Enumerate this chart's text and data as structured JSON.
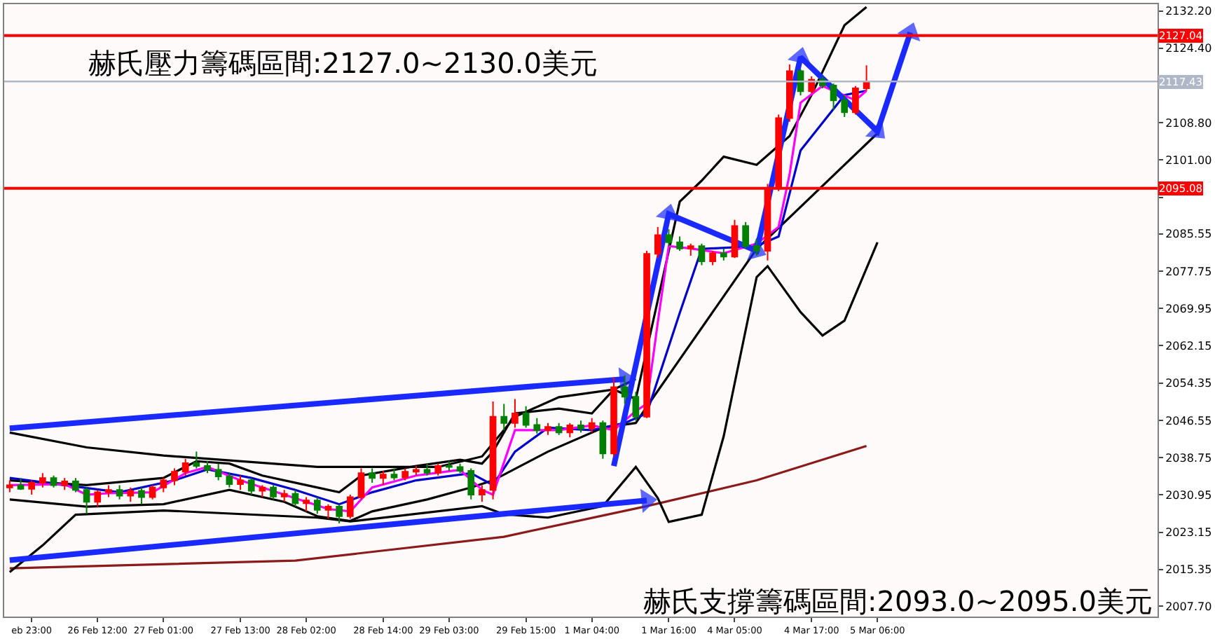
{
  "chart_data": {
    "type": "candlestick",
    "annotations": [
      "赫氏壓力籌碼區間:2127.0~2130.0美元",
      "赫氏支撐籌碼區間:2093.0~2095.0美元"
    ],
    "categories": [
      null,
      null,
      "eb 23:00",
      null,
      null,
      null,
      null,
      null,
      "26 Feb 12:00",
      null,
      null,
      null,
      null,
      null,
      "27 Feb 01:00",
      null,
      null,
      null,
      null,
      null,
      null,
      "27 Feb 13:00",
      null,
      null,
      null,
      null,
      null,
      "28 Feb 02:00",
      null,
      null,
      null,
      null,
      null,
      null,
      "28 Feb 14:00",
      null,
      null,
      null,
      null,
      null,
      "29 Feb 03:00",
      null,
      null,
      null,
      null,
      null,
      null,
      "29 Feb 15:00",
      null,
      null,
      null,
      null,
      null,
      "1 Mar 04:00",
      null,
      null,
      null,
      null,
      null,
      null,
      "1 Mar 16:00",
      null,
      null,
      null,
      null,
      null,
      "4 Mar 05:00",
      null,
      null,
      null,
      null,
      null,
      null,
      "4 Mar 17:00",
      null,
      null,
      null,
      null,
      null,
      "5 Mar 06:00",
      null,
      null,
      null,
      null,
      null,
      null,
      null,
      null,
      null,
      null,
      null,
      null,
      null,
      null,
      null,
      null,
      null,
      null,
      null,
      null,
      null,
      null,
      null,
      null,
      null
    ],
    "ohlc": [
      [
        2032.5,
        2034,
        2031.5,
        2033
      ],
      [
        2033,
        2034.5,
        2032,
        2032.2
      ],
      [
        2032.2,
        2034,
        2031,
        2033.5
      ],
      [
        2033.5,
        2035.5,
        2032.5,
        2034.5
      ],
      [
        2034.5,
        2035,
        2032.5,
        2033
      ],
      [
        2033,
        2034.5,
        2032,
        2033.8
      ],
      [
        2033.8,
        2034.5,
        2031.5,
        2032
      ],
      [
        2032,
        2032.5,
        2027,
        2029.5
      ],
      [
        2029.5,
        2032,
        2028.5,
        2031.5
      ],
      [
        2031.5,
        2033,
        2030.5,
        2032
      ],
      [
        2032,
        2033,
        2030,
        2030.8
      ],
      [
        2030.8,
        2032.5,
        2029.5,
        2031.8
      ],
      [
        2031.8,
        2032.5,
        2029,
        2030.5
      ],
      [
        2030.5,
        2033,
        2030,
        2032.5
      ],
      [
        2032.5,
        2034.5,
        2031.5,
        2034
      ],
      [
        2034,
        2036.5,
        2033,
        2035.8
      ],
      [
        2035.8,
        2038.5,
        2035,
        2037.6
      ],
      [
        2037.6,
        2040,
        2036.5,
        2037
      ],
      [
        2037,
        2038,
        2035.5,
        2036.2
      ],
      [
        2036.2,
        2037.5,
        2034,
        2034.8
      ],
      [
        2034.8,
        2035.5,
        2032.5,
        2033.2
      ],
      [
        2033.2,
        2035,
        2032,
        2034
      ],
      [
        2034,
        2034.5,
        2031,
        2031.8
      ],
      [
        2031.8,
        2033,
        2030.5,
        2032.5
      ],
      [
        2032.5,
        2033,
        2030,
        2030.6
      ],
      [
        2030.6,
        2032,
        2029.5,
        2031.2
      ],
      [
        2031.2,
        2032,
        2028.5,
        2029.2
      ],
      [
        2029.2,
        2030.5,
        2027.5,
        2029.8
      ],
      [
        2029.8,
        2030.5,
        2027,
        2027.8
      ],
      [
        2027.8,
        2029,
        2026,
        2028.5
      ],
      [
        2028.5,
        2029,
        2025,
        2026.5
      ],
      [
        2026.5,
        2031,
        2026,
        2030.5
      ],
      [
        2030.5,
        2036.5,
        2030,
        2035.5
      ],
      [
        2035.5,
        2036.5,
        2033.5,
        2034.5
      ],
      [
        2034.5,
        2036,
        2033,
        2035.2
      ],
      [
        2035.2,
        2036.5,
        2034,
        2034.6
      ],
      [
        2034.6,
        2036.5,
        2034,
        2035.8
      ],
      [
        2035.8,
        2037,
        2035,
        2036.2
      ],
      [
        2036.2,
        2037.5,
        2035,
        2035.6
      ],
      [
        2035.6,
        2037.5,
        2035,
        2037
      ],
      [
        2037,
        2038,
        2036,
        2036.8
      ],
      [
        2036.8,
        2037.5,
        2035.5,
        2036
      ],
      [
        2036,
        2036.5,
        2030,
        2031
      ],
      [
        2031,
        2033,
        2029.5,
        2032
      ],
      [
        2032,
        2050.5,
        2030,
        2047.3
      ],
      [
        2047.3,
        2050,
        2044.5,
        2046
      ],
      [
        2046,
        2051,
        2045,
        2048
      ],
      [
        2048,
        2049.5,
        2045,
        2045.6
      ],
      [
        2045.6,
        2047,
        2043.8,
        2044.5
      ],
      [
        2044.5,
        2046,
        2043.5,
        2045.2
      ],
      [
        2045.2,
        2046,
        2043.5,
        2044
      ],
      [
        2044,
        2046,
        2043,
        2045.5
      ],
      [
        2045.5,
        2046.5,
        2044,
        2044.8
      ],
      [
        2044.8,
        2047,
        2044,
        2046
      ],
      [
        2046,
        2046.5,
        2038.5,
        2039.6
      ],
      [
        2039.6,
        2055.5,
        2039,
        2053.5
      ],
      [
        2053.5,
        2056,
        2050,
        2051.5
      ],
      [
        2051.5,
        2052.5,
        2046.5,
        2047.3
      ],
      [
        2047.3,
        2082,
        2047,
        2081.4
      ],
      [
        2081.4,
        2087,
        2080.5,
        2085.3
      ],
      [
        2085.3,
        2086.5,
        2083,
        2083.8
      ],
      [
        2083.8,
        2085,
        2082,
        2082.5
      ],
      [
        2082.5,
        2083.5,
        2081,
        2083
      ],
      [
        2083,
        2083.5,
        2079,
        2079.8
      ],
      [
        2079.8,
        2082,
        2079,
        2081.5
      ],
      [
        2081.5,
        2082.5,
        2080,
        2080.8
      ],
      [
        2080.8,
        2088.5,
        2080.5,
        2087.2
      ],
      [
        2087.2,
        2088,
        2082.5,
        2083
      ],
      [
        2083,
        2084.5,
        2081,
        2082
      ],
      [
        2082,
        2096,
        2080,
        2095
      ],
      [
        2095,
        2110.5,
        2094.5,
        2109.8
      ],
      [
        2109.8,
        2121,
        2109,
        2119.6
      ],
      [
        2119.6,
        2120,
        2114.5,
        2115.4
      ],
      [
        2115.4,
        2118.5,
        2115,
        2117.8
      ],
      [
        2117.8,
        2118.5,
        2116,
        2116.6
      ],
      [
        2116.6,
        2117,
        2111.5,
        2113.5
      ],
      [
        2113.5,
        2114.5,
        2110,
        2111
      ],
      [
        2111,
        2116.5,
        2110.5,
        2116
      ],
      [
        2116,
        2120.8,
        2115.5,
        2117.43
      ],
      null,
      null,
      null,
      null,
      null,
      null,
      null,
      null,
      null,
      null,
      null,
      null,
      null,
      null,
      null,
      null,
      null,
      null,
      null,
      null,
      null,
      null,
      null,
      null,
      null,
      null
    ],
    "colors": [
      "#ff0000",
      "#008000",
      "#ff0000",
      "#ff0000",
      "#008000",
      "#ff0000",
      "#008000",
      "#008000",
      "#ff0000",
      "#ff0000",
      "#008000",
      "#ff0000",
      "#008000",
      "#ff0000",
      "#ff0000",
      "#ff0000",
      "#ff0000",
      "#008000",
      "#008000",
      "#008000",
      "#008000",
      "#ff0000",
      "#008000",
      "#ff0000",
      "#008000",
      "#ff0000",
      "#008000",
      "#ff0000",
      "#008000",
      "#ff0000",
      "#008000",
      "#ff0000",
      "#ff0000",
      "#008000",
      "#ff0000",
      "#008000",
      "#ff0000",
      "#ff0000",
      "#008000",
      "#ff0000",
      "#008000",
      "#008000",
      "#008000",
      "#ff0000",
      "#ff0000",
      "#008000",
      "#ff0000",
      "#008000",
      "#008000",
      "#ff0000",
      "#008000",
      "#ff0000",
      "#008000",
      "#ff0000",
      "#008000",
      "#ff0000",
      "#008000",
      "#008000",
      "#ff0000",
      "#ff0000",
      "#008000",
      "#008000",
      "#ff0000",
      "#008000",
      "#ff0000",
      "#008000",
      "#ff0000",
      "#008000",
      "#008000",
      "#ff0000",
      "#ff0000",
      "#ff0000",
      "#008000",
      "#ff0000",
      "#008000",
      "#008000",
      "#008000",
      "#ff0000",
      "#ff0000",
      null,
      null,
      null,
      null,
      null,
      null,
      null,
      null,
      null,
      null,
      null,
      null,
      null,
      null,
      null,
      null,
      null,
      null,
      null,
      null,
      null,
      null,
      null,
      null,
      null,
      null
    ],
    "series": [
      {
        "type": "line",
        "color": "#8b1a1a",
        "values": [
          2015.6,
          null,
          null,
          null,
          null,
          null,
          null,
          null,
          null,
          null,
          null,
          null,
          null,
          null,
          null,
          null,
          null,
          null,
          null,
          null,
          null,
          null,
          null,
          null,
          null,
          null,
          2017.2,
          null,
          null,
          null,
          null,
          null,
          null,
          null,
          null,
          null,
          null,
          null,
          null,
          null,
          null,
          null,
          null,
          null,
          null,
          2022.2,
          null,
          null,
          null,
          null,
          null,
          null,
          null,
          null,
          null,
          null,
          null,
          null,
          2028.6,
          null,
          null,
          null,
          null,
          null,
          null,
          null,
          null,
          null,
          2034,
          null,
          null,
          null,
          null,
          null,
          null,
          null,
          null,
          null,
          2041.2,
          null,
          null,
          null,
          null,
          null,
          null,
          null,
          null,
          null,
          null,
          null,
          null,
          null,
          null,
          null,
          null,
          null,
          null,
          null,
          null,
          null,
          null,
          null,
          null,
          null,
          null
        ]
      },
      {
        "type": "line",
        "color": "#000000",
        "values": [
          2044,
          null,
          null,
          null,
          null,
          null,
          null,
          2040.9,
          null,
          null,
          null,
          null,
          null,
          null,
          2039.2,
          null,
          null,
          null,
          null,
          null,
          null,
          null,
          null,
          null,
          null,
          null,
          null,
          null,
          2036.8,
          null,
          null,
          null,
          null,
          null,
          null,
          null,
          null,
          null,
          null,
          2036.8,
          null,
          null,
          null,
          2039,
          null,
          null,
          2047.3,
          null,
          null,
          null,
          2051.4,
          null,
          null,
          null,
          null,
          2053,
          null,
          2051,
          null,
          null,
          null,
          2092.3,
          null,
          2096.7,
          null,
          2101.7,
          null,
          null,
          2100,
          null,
          null,
          2106,
          null,
          2114.6,
          null,
          null,
          2129.2,
          null,
          2133,
          null,
          null,
          null,
          null,
          null,
          null,
          null,
          null,
          null,
          null,
          null,
          null,
          null,
          null,
          null,
          null,
          null,
          null,
          null,
          null,
          null,
          null,
          null,
          null,
          null,
          null
        ]
      },
      {
        "type": "line",
        "color": "#000000",
        "values": [
          2014.8,
          null,
          null,
          2020.4,
          null,
          null,
          2026.8,
          null,
          null,
          null,
          null,
          null,
          null,
          null,
          2027.7,
          null,
          null,
          null,
          null,
          null,
          null,
          null,
          null,
          null,
          null,
          null,
          null,
          null,
          2026.2,
          null,
          null,
          2025.4,
          null,
          null,
          null,
          null,
          null,
          null,
          null,
          null,
          null,
          null,
          null,
          2028.6,
          null,
          2026.9,
          null,
          null,
          null,
          2026.2,
          null,
          null,
          null,
          null,
          2028.6,
          null,
          null,
          2036.8,
          null,
          2030.3,
          2025.3,
          null,
          null,
          2026.8,
          null,
          2043.2,
          null,
          null,
          2076.5,
          2078.8,
          null,
          null,
          2069.2,
          null,
          2064.3,
          null,
          2067.4,
          null,
          null,
          2083.8,
          null,
          null,
          null,
          null,
          null,
          null,
          null,
          null,
          null,
          null,
          null,
          null,
          null,
          null,
          null,
          null,
          null,
          null,
          null,
          null,
          null,
          null,
          null,
          null,
          null
        ]
      },
      {
        "type": "line",
        "color": "#000000",
        "values": [
          2034,
          null,
          null,
          null,
          null,
          null,
          null,
          2033,
          null,
          null,
          null,
          null,
          null,
          null,
          2034.5,
          null,
          null,
          2038,
          null,
          null,
          2037.5,
          null,
          null,
          2035,
          null,
          null,
          null,
          2033,
          null,
          null,
          2031.5,
          null,
          2035,
          null,
          null,
          null,
          null,
          2037,
          null,
          null,
          null,
          2038.3,
          null,
          2037.5,
          2040,
          null,
          2048,
          null,
          null,
          null,
          2049,
          null,
          null,
          2048,
          null,
          2053,
          null,
          2055.2,
          null,
          null,
          null,
          null,
          null,
          null,
          null,
          null,
          null,
          null,
          null,
          null,
          null,
          null,
          null,
          null,
          null,
          null,
          null,
          null,
          null,
          null,
          null,
          null,
          null,
          null,
          null,
          null,
          null,
          null,
          null,
          null,
          null,
          null,
          null,
          null,
          null,
          null,
          null,
          null,
          null,
          null,
          null,
          null,
          null,
          null,
          null
        ]
      },
      {
        "type": "line",
        "color": "#000000",
        "values": [
          2030,
          null,
          null,
          null,
          null,
          null,
          null,
          2028.5,
          null,
          null,
          null,
          null,
          null,
          null,
          2029,
          null,
          null,
          null,
          null,
          null,
          2032,
          null,
          null,
          null,
          null,
          2029.5,
          null,
          null,
          2026.5,
          null,
          null,
          2025.5,
          null,
          2027.5,
          null,
          null,
          null,
          null,
          2030,
          null,
          null,
          null,
          2032.5,
          null,
          2034,
          null,
          null,
          null,
          null,
          2040,
          null,
          null,
          null,
          null,
          2045,
          null,
          null,
          2046,
          2049.4,
          null,
          null,
          null,
          null,
          null,
          null,
          null,
          null,
          null,
          2082.4,
          null,
          null,
          null,
          null,
          null,
          null,
          null,
          null,
          null,
          null,
          2106.6,
          null,
          null,
          null,
          null,
          null,
          null,
          null,
          null,
          null,
          null,
          null,
          null,
          null,
          null,
          null,
          null,
          null,
          null,
          null,
          null,
          null,
          null,
          null,
          null,
          null
        ]
      },
      {
        "type": "line",
        "color": "#0000cd",
        "values": [
          2034.5,
          null,
          null,
          null,
          null,
          2033,
          null,
          null,
          null,
          null,
          2031.5,
          null,
          null,
          null,
          null,
          2034,
          null,
          null,
          2036.3,
          null,
          null,
          null,
          2034.5,
          null,
          null,
          null,
          2032,
          null,
          null,
          null,
          2029,
          null,
          null,
          2031.5,
          null,
          null,
          null,
          2034,
          null,
          null,
          null,
          null,
          2035.5,
          null,
          2033,
          null,
          2040,
          null,
          null,
          2045,
          null,
          null,
          null,
          2044.5,
          null,
          null,
          2046,
          null,
          2048,
          2055,
          null,
          2069,
          null,
          2082.4,
          null,
          null,
          null,
          null,
          2083,
          null,
          2085,
          null,
          2103,
          null,
          null,
          null,
          2114.6,
          null,
          2115.5,
          null,
          null,
          null,
          null,
          null,
          null,
          null,
          null,
          null,
          null,
          null,
          null,
          null,
          null,
          null,
          null,
          null,
          null,
          null,
          null,
          null,
          null,
          null,
          null,
          null,
          null
        ]
      },
      {
        "type": "line",
        "color": "#ff00ff",
        "values": [
          2033,
          null,
          null,
          null,
          null,
          2033.2,
          null,
          2031,
          null,
          2031.3,
          null,
          null,
          null,
          2031.5,
          null,
          null,
          2035.5,
          null,
          2036.8,
          null,
          null,
          2034,
          null,
          null,
          null,
          2031,
          null,
          null,
          null,
          2028,
          null,
          2027.5,
          null,
          2032.5,
          null,
          null,
          null,
          2035,
          null,
          null,
          null,
          2036.2,
          null,
          2032,
          2031,
          null,
          2044.5,
          null,
          null,
          null,
          2044.5,
          null,
          null,
          2045.5,
          null,
          2044.5,
          null,
          2048.5,
          2050,
          2067,
          2083,
          null,
          2082.5,
          null,
          null,
          2081.5,
          null,
          null,
          2083.5,
          null,
          2087,
          2098,
          2113,
          null,
          2116.5,
          null,
          null,
          2113.5,
          2115.5,
          null,
          null,
          null,
          null,
          null,
          null,
          null,
          null,
          null,
          null,
          null,
          null,
          null,
          null,
          null,
          null,
          null,
          null,
          null,
          null,
          null,
          null,
          null,
          null,
          null,
          null
        ]
      },
      {
        "type": "line",
        "color": "#1a2aff",
        "marker": "triangle",
        "values": [
          2044.9,
          null,
          null,
          null,
          null,
          null,
          null,
          null,
          null,
          null,
          null,
          null,
          null,
          null,
          null,
          null,
          null,
          null,
          null,
          null,
          null,
          null,
          null,
          null,
          null,
          null,
          null,
          null,
          null,
          null,
          null,
          null,
          null,
          null,
          null,
          null,
          null,
          null,
          null,
          null,
          null,
          null,
          null,
          null,
          null,
          null,
          null,
          null,
          null,
          null,
          null,
          null,
          null,
          null,
          null,
          null,
          2055.2,
          null,
          null,
          null,
          null,
          null,
          null,
          null,
          null,
          null,
          null,
          null,
          null,
          null,
          null,
          null,
          null,
          null,
          null,
          null,
          null,
          null,
          null,
          null,
          null,
          null,
          null,
          null,
          null,
          null,
          null,
          null,
          null,
          null,
          null,
          null,
          null,
          null,
          null,
          null,
          null,
          null,
          null,
          null,
          null,
          null,
          null,
          null,
          null
        ]
      },
      {
        "type": "line",
        "color": "#1a2aff",
        "marker": "triangle",
        "values": [
          2017.3,
          null,
          null,
          null,
          null,
          null,
          null,
          null,
          null,
          null,
          null,
          null,
          null,
          null,
          null,
          null,
          null,
          null,
          null,
          null,
          null,
          null,
          null,
          null,
          null,
          null,
          null,
          null,
          null,
          null,
          null,
          null,
          null,
          null,
          null,
          null,
          null,
          null,
          null,
          null,
          null,
          null,
          null,
          null,
          null,
          null,
          null,
          null,
          null,
          null,
          null,
          null,
          null,
          null,
          null,
          null,
          null,
          null,
          2029.8,
          null,
          null,
          null,
          null,
          null,
          null,
          null,
          null,
          null,
          null,
          null,
          null,
          null,
          null,
          null,
          null,
          null,
          null,
          null,
          null,
          null,
          null,
          null,
          null,
          null,
          null,
          null,
          null,
          null,
          null,
          null,
          null,
          null,
          null,
          null,
          null,
          null,
          null,
          null,
          null,
          null,
          null,
          null,
          null,
          null,
          null
        ]
      },
      {
        "type": "line",
        "color": "#1a2aff",
        "marker": "triangle",
        "values": [
          null,
          null,
          null,
          null,
          null,
          null,
          null,
          null,
          null,
          null,
          null,
          null,
          null,
          null,
          null,
          null,
          null,
          null,
          null,
          null,
          null,
          null,
          null,
          null,
          null,
          null,
          null,
          null,
          null,
          null,
          null,
          null,
          null,
          null,
          null,
          null,
          null,
          null,
          null,
          null,
          null,
          null,
          null,
          null,
          null,
          null,
          null,
          null,
          null,
          null,
          null,
          null,
          null,
          null,
          null,
          2037,
          null,
          null,
          null,
          null,
          2089.7,
          null,
          null,
          null,
          null,
          null,
          null,
          null,
          2082,
          null,
          null,
          null,
          2122.5,
          null,
          null,
          null,
          null,
          null,
          null,
          2107,
          null,
          null,
          2127.7,
          null,
          null,
          null,
          null,
          null,
          null,
          null,
          null,
          null,
          null,
          null,
          null,
          null,
          null,
          null,
          null,
          null,
          null,
          null,
          null,
          null,
          null
        ]
      }
    ],
    "ref_lines": [
      {
        "axis": "y",
        "value": 2127.04,
        "label": "2127.04",
        "color": "#ff0000"
      },
      {
        "axis": "y",
        "value": 2095.08,
        "label": "2095.08",
        "color": "#ff0000"
      },
      {
        "axis": "y",
        "value": 2117.43,
        "label": "2117.43",
        "color": "#b0b8c8"
      }
    ],
    "ylim": [
      2005.5,
      2133.6
    ],
    "yticks": [
      {
        "value": 2132.2,
        "label": "2132.20"
      },
      {
        "value": 2124.4,
        "label": "2124.40"
      },
      {
        "value": 2108.8,
        "label": "2108.80"
      },
      {
        "value": 2101.0,
        "label": "2101.00"
      },
      {
        "value": 2093.2,
        "label": null
      },
      {
        "value": 2085.55,
        "label": "2085.55"
      },
      {
        "value": 2077.75,
        "label": "2077.75"
      },
      {
        "value": 2069.95,
        "label": "2069.95"
      },
      {
        "value": 2062.15,
        "label": "2062.15"
      },
      {
        "value": 2054.35,
        "label": "2054.35"
      },
      {
        "value": 2046.55,
        "label": "2046.55"
      },
      {
        "value": 2038.75,
        "label": "2038.75"
      },
      {
        "value": 2030.95,
        "label": "2030.95"
      },
      {
        "value": 2023.15,
        "label": "2023.15"
      },
      {
        "value": 2015.35,
        "label": "2015.35"
      },
      {
        "value": 2007.7,
        "label": "2007.70"
      }
    ]
  }
}
